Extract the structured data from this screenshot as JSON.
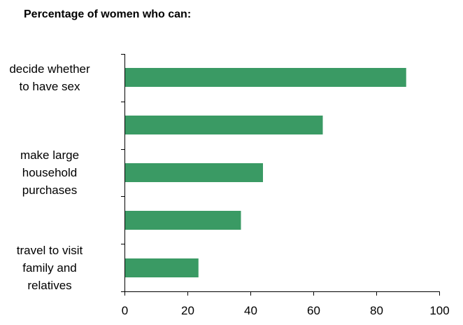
{
  "chart_data": {
    "type": "bar",
    "orientation": "horizontal",
    "title": "Percentage of women who can:",
    "categories": [
      "decide whether\nto have sex",
      "",
      "make large\nhousehold\npurchases",
      "",
      "travel to visit\nfamily and\nrelatives"
    ],
    "values": [
      89.5,
      63,
      44,
      37,
      23.5
    ],
    "xlim": [
      0,
      100
    ],
    "xticks": [
      "0",
      "20",
      "40",
      "60",
      "80",
      "100"
    ],
    "xlabel": "",
    "ylabel": "",
    "grid": false,
    "legend": "none",
    "bar_color": "#3a9a64"
  }
}
